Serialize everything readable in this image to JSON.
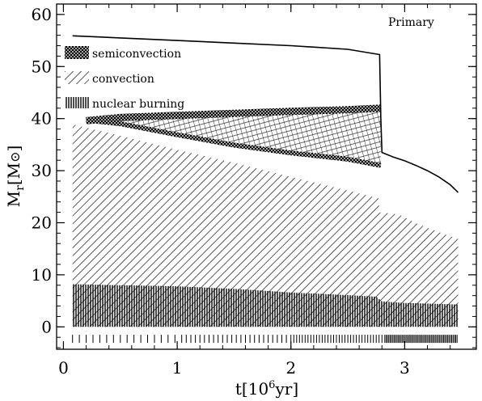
{
  "chart_data": {
    "type": "area",
    "panel_label": "Primary",
    "xlabel": "t[10⁶yr]",
    "ylabel": "Mr[M⊙]",
    "xlim": [
      -0.06,
      3.63
    ],
    "ylim": [
      -4.3,
      62
    ],
    "x_ticks": [
      0,
      1,
      2,
      3
    ],
    "y_ticks": [
      0,
      10,
      20,
      30,
      40,
      50,
      60
    ],
    "legend": [
      {
        "label": "semiconvection",
        "pattern": "crosshatch"
      },
      {
        "label": "convection",
        "pattern": "diagonal"
      },
      {
        "label": "nuclear burning",
        "pattern": "vertical"
      }
    ],
    "series": [
      {
        "name": "stellar mass",
        "kind": "line",
        "points": [
          [
            0.08,
            55.9
          ],
          [
            0.5,
            55.5
          ],
          [
            1.0,
            55.0
          ],
          [
            1.5,
            54.5
          ],
          [
            2.0,
            54.0
          ],
          [
            2.5,
            53.3
          ],
          [
            2.78,
            52.3
          ],
          [
            2.79,
            40.0
          ],
          [
            2.8,
            33.5
          ],
          [
            2.9,
            32.6
          ],
          [
            3.0,
            31.9
          ],
          [
            3.1,
            31.0
          ],
          [
            3.2,
            30.0
          ],
          [
            3.3,
            28.8
          ],
          [
            3.4,
            27.3
          ],
          [
            3.47,
            25.8
          ]
        ]
      },
      {
        "name": "convection",
        "kind": "region",
        "top": [
          [
            0.08,
            38.9
          ],
          [
            0.5,
            36.7
          ],
          [
            1.0,
            34.0
          ],
          [
            1.5,
            31.5
          ],
          [
            2.0,
            28.8
          ],
          [
            2.5,
            26.2
          ],
          [
            2.77,
            24.7
          ],
          [
            2.78,
            22.0
          ],
          [
            2.95,
            21.6
          ],
          [
            3.1,
            19.9
          ],
          [
            3.3,
            18.2
          ],
          [
            3.47,
            16.9
          ]
        ],
        "bottom": [
          [
            0.08,
            0.0
          ],
          [
            3.47,
            0.0
          ]
        ]
      },
      {
        "name": "nuclear burning core",
        "kind": "region",
        "top": [
          [
            0.08,
            8.2
          ],
          [
            0.5,
            8.0
          ],
          [
            1.0,
            7.8
          ],
          [
            1.5,
            7.3
          ],
          [
            2.0,
            6.6
          ],
          [
            2.5,
            6.1
          ],
          [
            2.75,
            5.8
          ],
          [
            2.8,
            4.9
          ],
          [
            3.0,
            4.6
          ],
          [
            3.47,
            4.3
          ]
        ],
        "bottom": [
          [
            0.08,
            0.0
          ],
          [
            3.47,
            0.0
          ]
        ]
      },
      {
        "name": "semiconvection / convective shell",
        "kind": "region",
        "top": [
          [
            0.2,
            39.6
          ],
          [
            0.5,
            40.2
          ],
          [
            1.0,
            40.6
          ],
          [
            1.5,
            41.0
          ],
          [
            2.0,
            41.4
          ],
          [
            2.5,
            41.7
          ],
          [
            2.79,
            42.0
          ]
        ],
        "bottom": [
          [
            0.2,
            39.3
          ],
          [
            0.5,
            38.6
          ],
          [
            1.0,
            36.5
          ],
          [
            1.5,
            34.5
          ],
          [
            2.0,
            33.0
          ],
          [
            2.5,
            31.8
          ],
          [
            2.79,
            30.6
          ]
        ]
      },
      {
        "name": "nuclear burning ticks",
        "kind": "ticks",
        "level": -2.3
      }
    ],
    "grid": false
  }
}
